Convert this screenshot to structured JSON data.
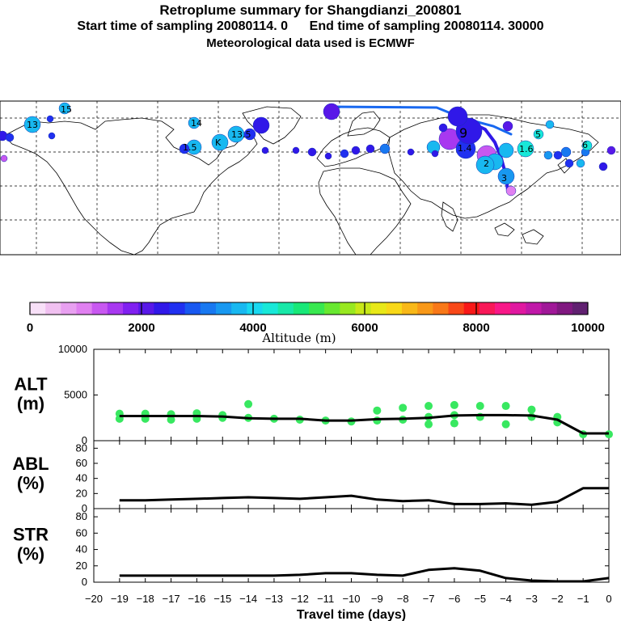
{
  "header": {
    "title": "Retroplume summary for Shangdianzi_200801",
    "subtitle_start": "Start time of sampling 20080114.     0",
    "subtitle_end": "End time of sampling 20080114. 30000",
    "meteo": "Meteorological data used is ECMWF"
  },
  "colorbar": {
    "label": "Altitude (m)",
    "ticks": [
      "0",
      "2000",
      "4000",
      "6000",
      "8000",
      "10000"
    ],
    "colors": [
      "#f8e0f8",
      "#f0c0f0",
      "#e8a0f0",
      "#e080f0",
      "#c858f0",
      "#a838f0",
      "#8020f0",
      "#5818e8",
      "#3018e8",
      "#2030f0",
      "#1858f0",
      "#1878f0",
      "#1898f0",
      "#18b8f0",
      "#18d8f0",
      "#18e8d8",
      "#18e8a8",
      "#18e878",
      "#38e850",
      "#68e830",
      "#98e820",
      "#c8e818",
      "#e8e818",
      "#f8d818",
      "#f8b818",
      "#f89818",
      "#f87818",
      "#f84818",
      "#f81818",
      "#f81858",
      "#f81888",
      "#e018a0",
      "#c018a8",
      "#a01898",
      "#801880",
      "#602070"
    ]
  },
  "map": {
    "plume_labels": [
      "15",
      "13",
      "14",
      "13.5",
      "K",
      "1.5",
      "5",
      "6",
      "1.6",
      "9",
      "3",
      "2",
      "1.4"
    ]
  },
  "chart_data": [
    {
      "type": "line",
      "panel": "ALT",
      "ylabel": "ALT\n(m)",
      "ylabel_top": "ALT",
      "ylabel_unit": "(m)",
      "ylim": [
        0,
        10000
      ],
      "yticks": [
        "10000",
        "5000",
        "0"
      ],
      "x": [
        -19,
        -18,
        -17,
        -16,
        -15,
        -14,
        -13,
        -12,
        -11,
        -10,
        -9,
        -8,
        -7,
        -6,
        -5,
        -4,
        -3,
        -2,
        -1,
        0
      ],
      "values": [
        2700,
        2700,
        2700,
        2700,
        2650,
        2450,
        2400,
        2400,
        2200,
        2200,
        2350,
        2400,
        2500,
        2750,
        2800,
        2800,
        2750,
        2300,
        800,
        800
      ],
      "scatter": [
        {
          "x": -19,
          "y": 2950
        },
        {
          "x": -19,
          "y": 2400
        },
        {
          "x": -18,
          "y": 2950
        },
        {
          "x": -18,
          "y": 2400
        },
        {
          "x": -17,
          "y": 2900
        },
        {
          "x": -17,
          "y": 2300
        },
        {
          "x": -16,
          "y": 3000
        },
        {
          "x": -16,
          "y": 2400
        },
        {
          "x": -15,
          "y": 2800
        },
        {
          "x": -15,
          "y": 2500
        },
        {
          "x": -14,
          "y": 2500
        },
        {
          "x": -14,
          "y": 4000
        },
        {
          "x": -13,
          "y": 2400
        },
        {
          "x": -12,
          "y": 2300
        },
        {
          "x": -11,
          "y": 2200
        },
        {
          "x": -10,
          "y": 2100
        },
        {
          "x": -9,
          "y": 2200
        },
        {
          "x": -9,
          "y": 3300
        },
        {
          "x": -8,
          "y": 2300
        },
        {
          "x": -8,
          "y": 3600
        },
        {
          "x": -7,
          "y": 1800
        },
        {
          "x": -7,
          "y": 3800
        },
        {
          "x": -7,
          "y": 2600
        },
        {
          "x": -6,
          "y": 1900
        },
        {
          "x": -6,
          "y": 3900
        },
        {
          "x": -6,
          "y": 2800
        },
        {
          "x": -5,
          "y": 3800
        },
        {
          "x": -5,
          "y": 2600
        },
        {
          "x": -4,
          "y": 1800
        },
        {
          "x": -4,
          "y": 3800
        },
        {
          "x": -3,
          "y": 3400
        },
        {
          "x": -3,
          "y": 2600
        },
        {
          "x": -2,
          "y": 2600
        },
        {
          "x": -2,
          "y": 2000
        },
        {
          "x": -1,
          "y": 700
        },
        {
          "x": 0,
          "y": 700
        }
      ]
    },
    {
      "type": "line",
      "panel": "ABL",
      "ylabel_top": "ABL",
      "ylabel_unit": "(%)",
      "ylim": [
        0,
        90
      ],
      "yticks": [
        "80",
        "60",
        "40",
        "20",
        "0"
      ],
      "x": [
        -19,
        -18,
        -17,
        -16,
        -15,
        -14,
        -13,
        -12,
        -11,
        -10,
        -9,
        -8,
        -7,
        -6,
        -5,
        -4,
        -3,
        -2,
        -1,
        0
      ],
      "values": [
        11,
        11,
        12,
        13,
        14,
        15,
        14,
        13,
        15,
        17,
        12,
        10,
        11,
        6,
        6,
        7,
        5,
        9,
        27,
        27
      ]
    },
    {
      "type": "line",
      "panel": "STR",
      "ylabel_top": "STR",
      "ylabel_unit": "(%)",
      "ylim": [
        0,
        90
      ],
      "yticks": [
        "80",
        "60",
        "40",
        "20",
        "0"
      ],
      "xlabel": "Travel time (days)",
      "xticks": [
        "−20",
        "−19",
        "−18",
        "−17",
        "−16",
        "−15",
        "−14",
        "−13",
        "−12",
        "−11",
        "−10",
        "−9",
        "−8",
        "−7",
        "−6",
        "−5",
        "−4",
        "−3",
        "−2",
        "−1",
        "0"
      ],
      "x": [
        -19,
        -18,
        -17,
        -16,
        -15,
        -14,
        -13,
        -12,
        -11,
        -10,
        -9,
        -8,
        -7,
        -6,
        -5,
        -4,
        -3,
        -2,
        -1,
        0
      ],
      "values": [
        8,
        8,
        8,
        8,
        8,
        8,
        8,
        9,
        11,
        11,
        9,
        8,
        15,
        17,
        14,
        5,
        2,
        1,
        1,
        5
      ]
    }
  ]
}
